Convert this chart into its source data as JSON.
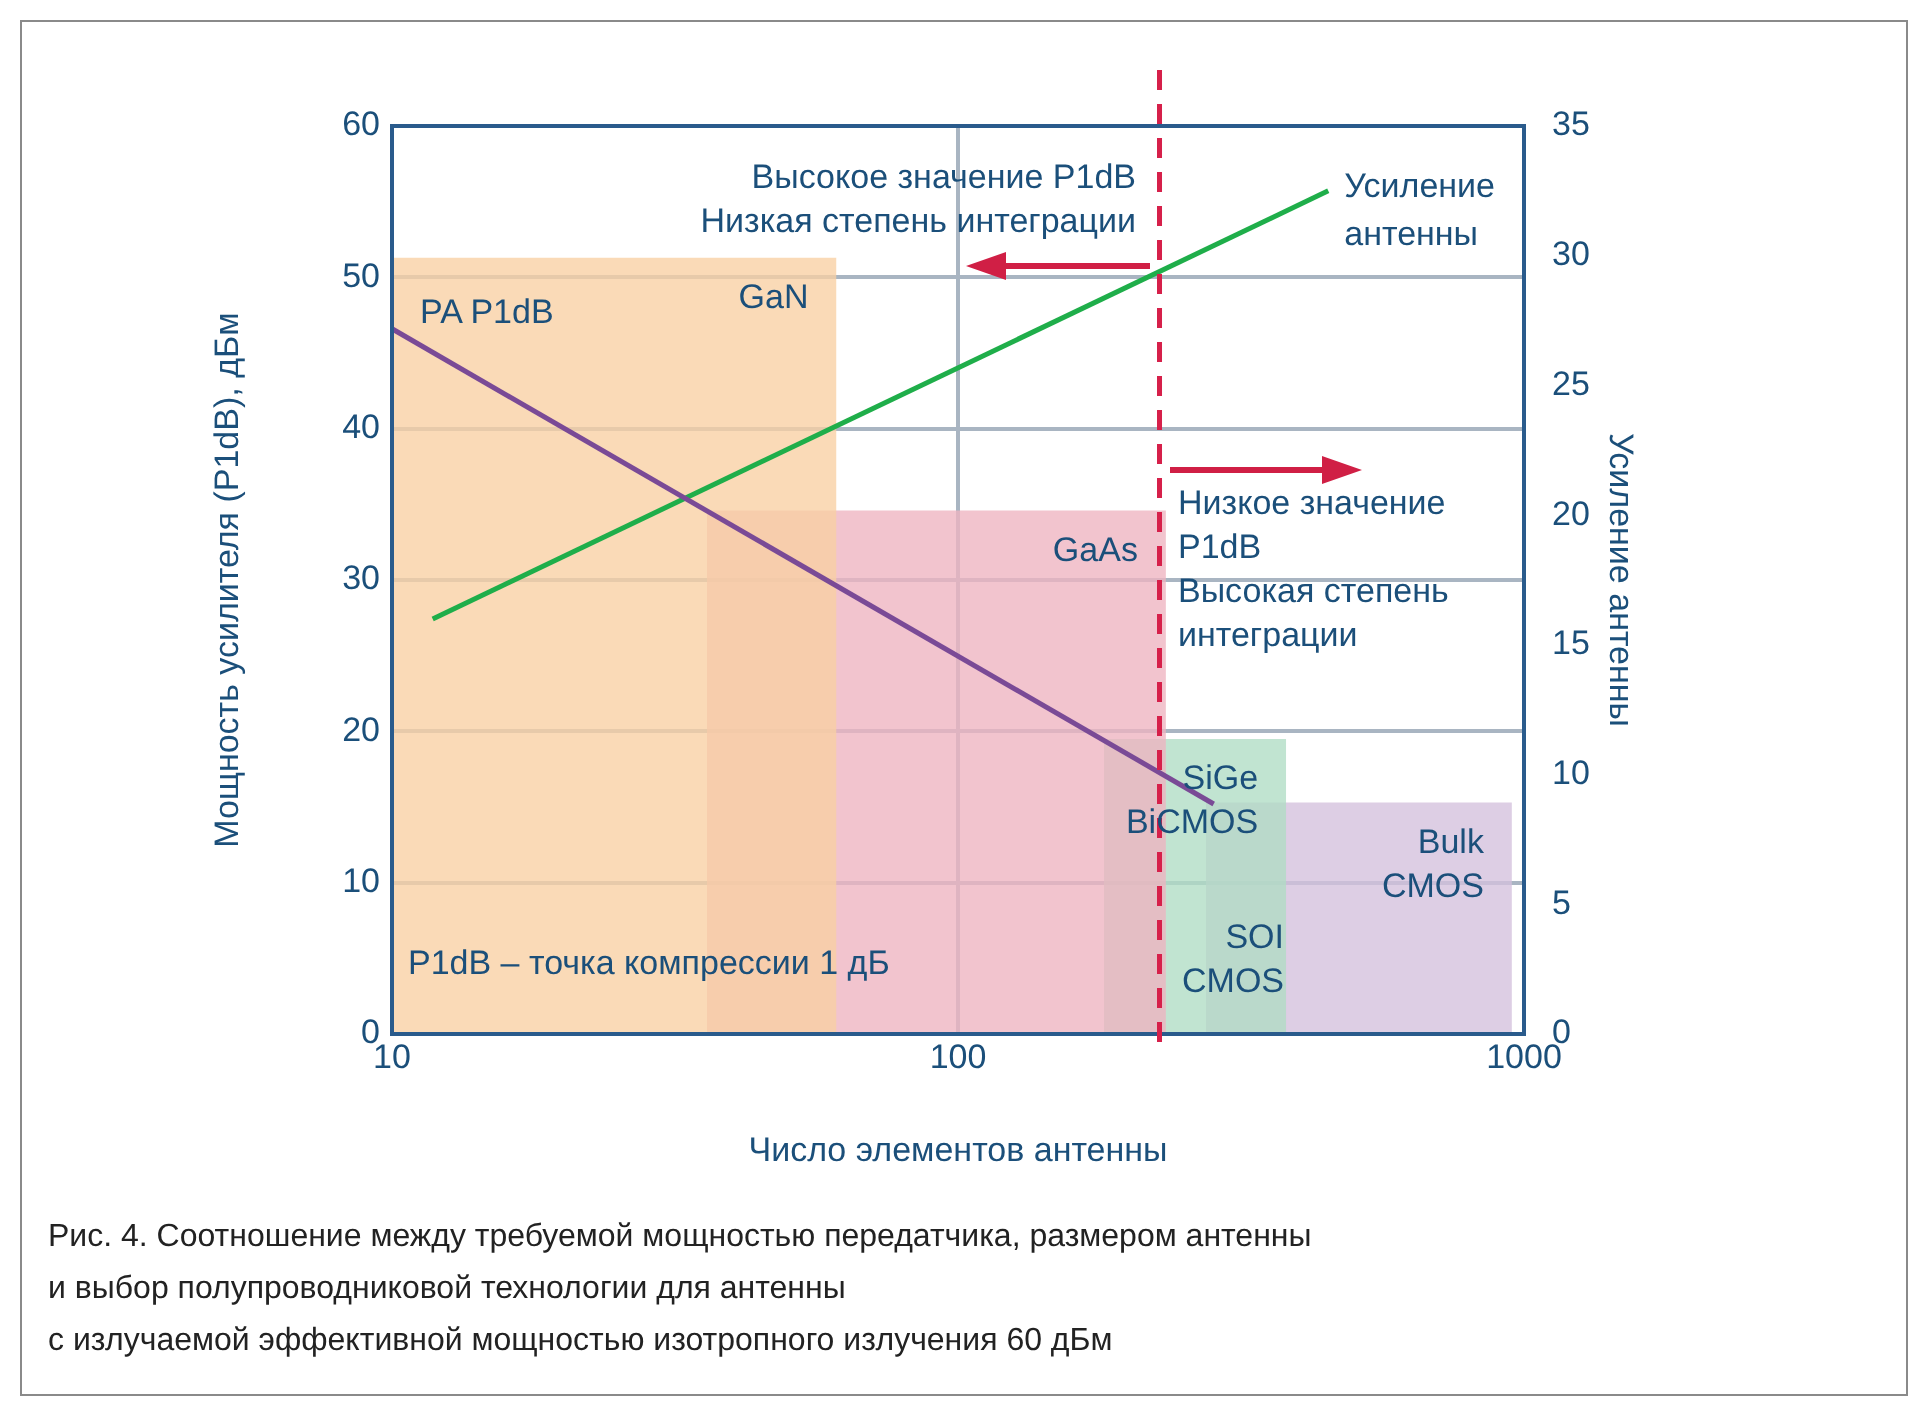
{
  "chart_data": {
    "type": "line",
    "xlabel": "Число элементов антенны",
    "ylabel": "Мощность усилителя (P1dB), дБм",
    "y2label": "Усиление антенны",
    "log": "x",
    "xlim": [
      10,
      1000
    ],
    "xticks": [
      10,
      100,
      1000
    ],
    "ylim": [
      0,
      60
    ],
    "yticks": [
      0,
      10,
      20,
      30,
      40,
      50,
      60
    ],
    "y2lim": [
      0,
      35
    ],
    "y2ticks": [
      0,
      5,
      10,
      15,
      20,
      25,
      30,
      35
    ],
    "grid": true,
    "legend": false,
    "marker": "none",
    "series": [
      {
        "name": "GaN",
        "type": "area",
        "color": "#f9cfa3",
        "x": [
          10,
          61
        ],
        "values": [
          51.3,
          51.3
        ]
      },
      {
        "name": "GaAs",
        "type": "area",
        "color": "#eeb3c0",
        "x": [
          36,
          233
        ],
        "values": [
          34.6,
          34.6
        ]
      },
      {
        "name": "SiGe BiCMOS",
        "type": "area",
        "color": "#b0dcc4",
        "x": [
          181,
          380
        ],
        "values": [
          19.5,
          19.5
        ]
      },
      {
        "name": "Bulk CMOS",
        "type": "area",
        "color": "#d3c0dc",
        "x": [
          274,
          952
        ],
        "values": [
          15.3,
          15.3
        ]
      },
      {
        "name": "PA P1dB",
        "color": "#7a4a96",
        "x": [
          10,
          283
        ],
        "values": [
          46.6,
          15.2
        ]
      },
      {
        "name": "Усиление антенны",
        "axis": "y2",
        "color": "#1fae4a",
        "x": [
          11.8,
          451
        ],
        "values": [
          16.0,
          32.5
        ]
      }
    ],
    "ref_lines": [
      {
        "axis": "x",
        "value": 227,
        "color": "#d6204a",
        "line_style": "dashed"
      }
    ],
    "annotations": [
      "Высокое значение P1dB\nНизкая степень интеграции",
      "Низкое значение\nP1dB\nВысокая степень\nинтеграции",
      "SOI\nCMOS",
      "P1dB – точка компрессии 1 дБ",
      "Рис. 4. Соотношение между требуемой мощностью передатчика, размером антенны\nи выбор полупроводниковой технологии для антенны\nс излучаемой эффективной мощностью изотропного излучения 60 дБм"
    ]
  }
}
